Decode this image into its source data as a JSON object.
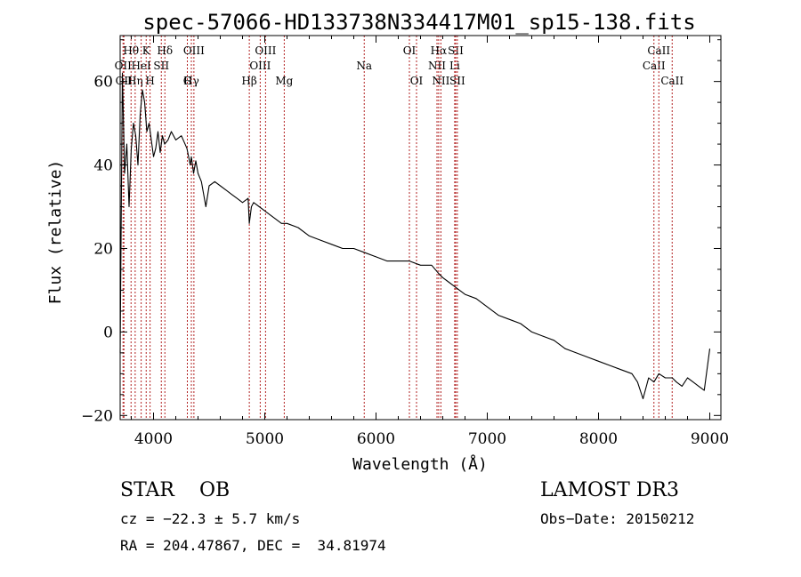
{
  "chart_data": {
    "type": "line",
    "title": "spec-57066-HD133738N334417M01_sp15-138.fits",
    "xlabel": "Wavelength (Å)",
    "ylabel": "Flux (relative)",
    "xlim": [
      3700,
      9100
    ],
    "ylim": [
      -21,
      71
    ],
    "x_ticks": [
      4000,
      5000,
      6000,
      7000,
      8000,
      9000
    ],
    "y_ticks": [
      -20,
      0,
      20,
      40,
      60
    ],
    "x_tick_labels": [
      "4000",
      "5000",
      "6000",
      "7000",
      "8000",
      "9000"
    ],
    "y_tick_labels": [
      "−20",
      "0",
      "20",
      "40",
      "60"
    ],
    "grid": false,
    "line_color": "#000000",
    "marker_color": "#b22222",
    "series": [
      {
        "x": [
          3700,
          3720,
          3740,
          3760,
          3780,
          3800,
          3820,
          3840,
          3860,
          3880,
          3900,
          3920,
          3940,
          3960,
          3980,
          4000,
          4020,
          4040,
          4060,
          4080,
          4100,
          4130,
          4160,
          4200,
          4250,
          4300,
          4330,
          4340,
          4360,
          4380,
          4400,
          4430,
          4470,
          4500,
          4550,
          4600,
          4650,
          4700,
          4750,
          4800,
          4850,
          4861,
          4880,
          4900,
          4950,
          5000,
          5050,
          5100,
          5150,
          5200,
          5300,
          5400,
          5500,
          5600,
          5700,
          5800,
          5900,
          6000,
          6100,
          6200,
          6300,
          6400,
          6500,
          6563,
          6600,
          6650,
          6700,
          6750,
          6800,
          6900,
          7000,
          7100,
          7200,
          7300,
          7400,
          7500,
          7600,
          7700,
          7800,
          7900,
          8000,
          8100,
          8200,
          8300,
          8350,
          8400,
          8450,
          8498,
          8542,
          8600,
          8662,
          8700,
          8750,
          8800,
          8850,
          8900,
          8950,
          9000
        ],
        "y": [
          -5,
          62,
          38,
          45,
          30,
          44,
          50,
          47,
          40,
          52,
          58,
          55,
          48,
          50,
          46,
          42,
          44,
          48,
          43,
          47,
          45,
          46,
          48,
          46,
          47,
          44,
          40,
          42,
          38,
          41,
          38,
          36,
          30,
          35,
          36,
          35,
          34,
          33,
          32,
          31,
          32,
          26,
          30,
          31,
          30,
          29,
          28,
          27,
          26,
          26,
          25,
          23,
          22,
          21,
          20,
          20,
          19,
          18,
          17,
          17,
          17,
          16,
          16,
          14,
          13,
          12,
          11,
          10,
          9,
          8,
          6,
          4,
          3,
          2,
          0,
          -1,
          -2,
          -4,
          -5,
          -6,
          -7,
          -8,
          -9,
          -10,
          -12,
          -16,
          -11,
          -12,
          -10,
          -11,
          -11,
          -12,
          -13,
          -11,
          -12,
          -13,
          -14,
          -4
        ]
      }
    ],
    "line_markers": [
      {
        "x": 3726,
        "label": "OII",
        "row": 1
      },
      {
        "x": 3734,
        "label": "OII",
        "row": 3
      },
      {
        "x": 3798,
        "label": "Hθ",
        "row": 0
      },
      {
        "x": 3835,
        "label": "Hη",
        "row": 2
      },
      {
        "x": 3889,
        "label": "HeI",
        "row": 1
      },
      {
        "x": 3934,
        "label": "K",
        "row": 0
      },
      {
        "x": 3969,
        "label": "H",
        "row": 3
      },
      {
        "x": 4070,
        "label": "SII",
        "row": 1
      },
      {
        "x": 4102,
        "label": "Hδ",
        "row": 0
      },
      {
        "x": 4304,
        "label": "G",
        "row": 3
      },
      {
        "x": 4340,
        "label": "Hγ",
        "row": 2
      },
      {
        "x": 4363,
        "label": "OIII",
        "row": 0
      },
      {
        "x": 4861,
        "label": "Hβ",
        "row": 3
      },
      {
        "x": 4959,
        "label": "OIII",
        "row": 1
      },
      {
        "x": 5007,
        "label": "OIII",
        "row": 0
      },
      {
        "x": 5175,
        "label": "Mg",
        "row": 3
      },
      {
        "x": 5894,
        "label": "Na",
        "row": 1
      },
      {
        "x": 6300,
        "label": "OI",
        "row": 0
      },
      {
        "x": 6364,
        "label": "OI",
        "row": 3
      },
      {
        "x": 6548,
        "label": "NII",
        "row": 1
      },
      {
        "x": 6563,
        "label": "Hα",
        "row": 0
      },
      {
        "x": 6583,
        "label": "NII",
        "row": 3
      },
      {
        "x": 6707,
        "label": "Li",
        "row": 1
      },
      {
        "x": 6716,
        "label": "SII",
        "row": 0
      },
      {
        "x": 6731,
        "label": "SII",
        "row": 3
      },
      {
        "x": 8498,
        "label": "CaII",
        "row": 1
      },
      {
        "x": 8542,
        "label": "CaII",
        "row": 0
      },
      {
        "x": 8662,
        "label": "CaII",
        "row": 3
      }
    ]
  },
  "info": {
    "class_text": "STAR    OB",
    "survey": "LAMOST DR3",
    "cz": "cz = −22.3 ± 5.7 km/s",
    "obs_date": "Obs−Date: 20150212",
    "radec": "RA = 204.47867, DEC =  34.81974"
  }
}
